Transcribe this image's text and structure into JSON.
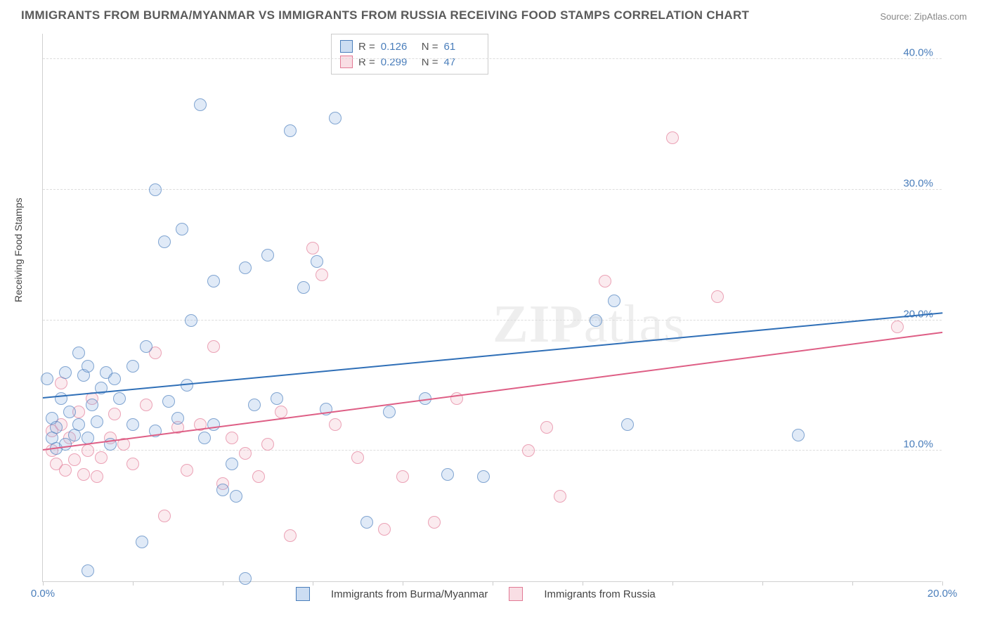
{
  "title": "IMMIGRANTS FROM BURMA/MYANMAR VS IMMIGRANTS FROM RUSSIA RECEIVING FOOD STAMPS CORRELATION CHART",
  "source": "Source: ZipAtlas.com",
  "y_axis_label": "Receiving Food Stamps",
  "watermark_bold": "ZIP",
  "watermark_rest": "atlas",
  "chart": {
    "type": "scatter",
    "xlim": [
      0,
      20
    ],
    "ylim": [
      0,
      42
    ],
    "xtick_positions": [
      0,
      2,
      4,
      6,
      8,
      10,
      12,
      14,
      16,
      18,
      20
    ],
    "xtick_labels": {
      "0": "0.0%",
      "20": "20.0%"
    },
    "ytick_positions": [
      10,
      20,
      30,
      40
    ],
    "ytick_labels": {
      "10": "10.0%",
      "20": "20.0%",
      "30": "30.0%",
      "40": "40.0%"
    },
    "background": "#ffffff",
    "grid_color": "#dddddd",
    "axis_color": "#d0d0d0",
    "tick_label_color": "#4a7ebb",
    "marker_radius": 9,
    "marker_opacity_fill": 0.28,
    "marker_opacity_stroke": 0.65,
    "series": {
      "burma": {
        "label": "Immigrants from Burma/Myanmar",
        "fill": "#8fb4e3",
        "stroke": "#4a7ebb",
        "R": "0.126",
        "N": "61",
        "trend": {
          "x0": 0,
          "y0": 14.0,
          "x1": 20,
          "y1": 20.5,
          "color": "#2f6fb7",
          "width": 2
        },
        "points": [
          [
            0.1,
            15.5
          ],
          [
            0.2,
            12.5
          ],
          [
            0.2,
            11.0
          ],
          [
            0.3,
            10.2
          ],
          [
            0.3,
            11.8
          ],
          [
            0.4,
            14.0
          ],
          [
            0.5,
            16.0
          ],
          [
            0.5,
            10.5
          ],
          [
            0.6,
            13.0
          ],
          [
            0.7,
            11.2
          ],
          [
            0.8,
            17.5
          ],
          [
            0.8,
            12.0
          ],
          [
            0.9,
            15.8
          ],
          [
            1.0,
            11.0
          ],
          [
            1.0,
            16.5
          ],
          [
            1.0,
            0.8
          ],
          [
            1.1,
            13.5
          ],
          [
            1.2,
            12.2
          ],
          [
            1.3,
            14.8
          ],
          [
            1.4,
            16.0
          ],
          [
            1.5,
            10.5
          ],
          [
            1.6,
            15.5
          ],
          [
            1.7,
            14.0
          ],
          [
            2.0,
            12.0
          ],
          [
            2.0,
            16.5
          ],
          [
            2.2,
            3.0
          ],
          [
            2.3,
            18.0
          ],
          [
            2.5,
            11.5
          ],
          [
            2.5,
            30.0
          ],
          [
            2.7,
            26.0
          ],
          [
            2.8,
            13.8
          ],
          [
            3.0,
            12.5
          ],
          [
            3.1,
            27.0
          ],
          [
            3.2,
            15.0
          ],
          [
            3.3,
            20.0
          ],
          [
            3.5,
            36.5
          ],
          [
            3.6,
            11.0
          ],
          [
            3.8,
            12.0
          ],
          [
            3.8,
            23.0
          ],
          [
            4.0,
            7.0
          ],
          [
            4.2,
            9.0
          ],
          [
            4.3,
            6.5
          ],
          [
            4.5,
            24.0
          ],
          [
            4.5,
            0.2
          ],
          [
            4.7,
            13.5
          ],
          [
            5.0,
            25.0
          ],
          [
            5.2,
            14.0
          ],
          [
            5.5,
            34.5
          ],
          [
            5.8,
            22.5
          ],
          [
            6.1,
            24.5
          ],
          [
            6.3,
            13.2
          ],
          [
            6.5,
            35.5
          ],
          [
            7.2,
            4.5
          ],
          [
            7.7,
            13.0
          ],
          [
            8.5,
            14.0
          ],
          [
            9.0,
            8.2
          ],
          [
            9.8,
            8.0
          ],
          [
            12.3,
            20.0
          ],
          [
            12.7,
            21.5
          ],
          [
            16.8,
            11.2
          ],
          [
            13.0,
            12.0
          ]
        ]
      },
      "russia": {
        "label": "Immigrants from Russia",
        "fill": "#f2b6c4",
        "stroke": "#e27a95",
        "R": "0.299",
        "N": "47",
        "trend": {
          "x0": 0,
          "y0": 10.0,
          "x1": 20,
          "y1": 19.0,
          "color": "#de5e85",
          "width": 2
        },
        "points": [
          [
            0.2,
            11.5
          ],
          [
            0.2,
            10.0
          ],
          [
            0.3,
            9.0
          ],
          [
            0.4,
            12.0
          ],
          [
            0.4,
            15.2
          ],
          [
            0.5,
            8.5
          ],
          [
            0.6,
            11.0
          ],
          [
            0.7,
            9.3
          ],
          [
            0.8,
            13.0
          ],
          [
            0.9,
            8.2
          ],
          [
            1.0,
            10.0
          ],
          [
            1.1,
            14.0
          ],
          [
            1.2,
            8.0
          ],
          [
            1.3,
            9.5
          ],
          [
            1.5,
            11.0
          ],
          [
            1.6,
            12.8
          ],
          [
            1.8,
            10.5
          ],
          [
            2.0,
            9.0
          ],
          [
            2.3,
            13.5
          ],
          [
            2.5,
            17.5
          ],
          [
            2.7,
            5.0
          ],
          [
            3.0,
            11.8
          ],
          [
            3.2,
            8.5
          ],
          [
            3.5,
            12.0
          ],
          [
            3.8,
            18.0
          ],
          [
            4.0,
            7.5
          ],
          [
            4.2,
            11.0
          ],
          [
            4.5,
            9.8
          ],
          [
            4.8,
            8.0
          ],
          [
            5.0,
            10.5
          ],
          [
            5.3,
            13.0
          ],
          [
            5.5,
            3.5
          ],
          [
            6.0,
            25.5
          ],
          [
            6.2,
            23.5
          ],
          [
            6.5,
            12.0
          ],
          [
            7.0,
            9.5
          ],
          [
            7.6,
            4.0
          ],
          [
            8.0,
            8.0
          ],
          [
            8.7,
            4.5
          ],
          [
            9.2,
            14.0
          ],
          [
            10.8,
            10.0
          ],
          [
            11.2,
            11.8
          ],
          [
            11.5,
            6.5
          ],
          [
            12.5,
            23.0
          ],
          [
            14.0,
            34.0
          ],
          [
            15.0,
            21.8
          ],
          [
            19.0,
            19.5
          ]
        ]
      }
    }
  },
  "legend_stats_labels": {
    "R": "R  =",
    "N": "N  ="
  }
}
